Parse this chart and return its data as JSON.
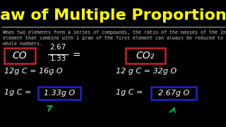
{
  "bg_color": "#000000",
  "title": "Law of Multiple Proportions",
  "title_color": "#ffff00",
  "subtitle_line1": "When two elements form a series of compounds, the ratio of the masses of the 2nd",
  "subtitle_line2": "element that combine with 1 gram of the first element can always be reduced to small",
  "subtitle_line3": "whole numbers.",
  "subtitle_color": "#cccccc",
  "line_color": "#aaaaaa",
  "co_label": "CO",
  "co2_label": "CO₂",
  "fraction_num": "2.67",
  "fraction_den": "1.33",
  "equals": "=",
  "line1_left": "12g C = 16g O",
  "line1_right": "12 g C = 32g O",
  "line2_left_pre": "1g C = ",
  "line2_left_box": "1.33g O",
  "line2_right_pre": "1g C = ",
  "line2_right_box": "2.67g O",
  "box_co_color": "#cc2222",
  "box_co2_color": "#cc2222",
  "box_val_left_color": "#2222cc",
  "box_val_right_color": "#2222cc",
  "arrow_left_color": "#00aa44",
  "arrow_right_color": "#00aa44",
  "text_color": "#ffffff"
}
